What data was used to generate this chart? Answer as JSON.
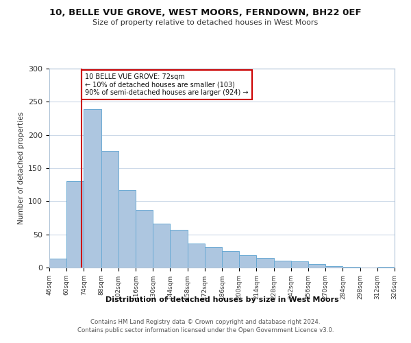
{
  "title": "10, BELLE VUE GROVE, WEST MOORS, FERNDOWN, BH22 0EF",
  "subtitle": "Size of property relative to detached houses in West Moors",
  "xlabel": "Distribution of detached houses by size in West Moors",
  "ylabel": "Number of detached properties",
  "bin_edges": [
    46,
    60,
    74,
    88,
    102,
    116,
    130,
    144,
    158,
    172,
    186,
    200,
    214,
    228,
    242,
    256,
    270,
    284,
    298,
    312,
    326
  ],
  "bar_heights": [
    13,
    130,
    239,
    176,
    117,
    87,
    66,
    57,
    36,
    31,
    25,
    19,
    15,
    10,
    9,
    5,
    2,
    1,
    0,
    1
  ],
  "bar_color": "#adc6e0",
  "bar_edgecolor": "#6aaad4",
  "property_size": 72,
  "vline_color": "#cc0000",
  "annotation_text": "10 BELLE VUE GROVE: 72sqm\n← 10% of detached houses are smaller (103)\n90% of semi-detached houses are larger (924) →",
  "annotation_box_edgecolor": "#cc0000",
  "annotation_box_facecolor": "#ffffff",
  "ylim": [
    0,
    300
  ],
  "yticks": [
    0,
    50,
    100,
    150,
    200,
    250,
    300
  ],
  "footer_line1": "Contains HM Land Registry data © Crown copyright and database right 2024.",
  "footer_line2": "Contains public sector information licensed under the Open Government Licence v3.0.",
  "background_color": "#ffffff",
  "grid_color": "#ccd9e8"
}
